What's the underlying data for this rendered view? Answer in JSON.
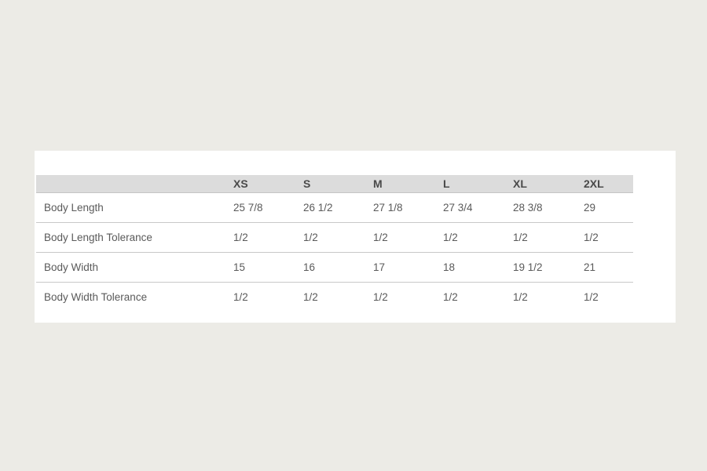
{
  "size_chart": {
    "headers": [
      "",
      "XS",
      "S",
      "M",
      "L",
      "XL",
      "2XL"
    ],
    "rows": [
      {
        "label": "Body Length",
        "values": [
          "25 7/8",
          "26 1/2",
          "27 1/8",
          "27 3/4",
          "28 3/8",
          "29"
        ]
      },
      {
        "label": "Body Length Tolerance",
        "values": [
          "1/2",
          "1/2",
          "1/2",
          "1/2",
          "1/2",
          "1/2"
        ]
      },
      {
        "label": "Body Width",
        "values": [
          "15",
          "16",
          "17",
          "18",
          "19 1/2",
          "21"
        ]
      },
      {
        "label": "Body Width Tolerance",
        "values": [
          "1/2",
          "1/2",
          "1/2",
          "1/2",
          "1/2",
          "1/2"
        ]
      }
    ]
  }
}
